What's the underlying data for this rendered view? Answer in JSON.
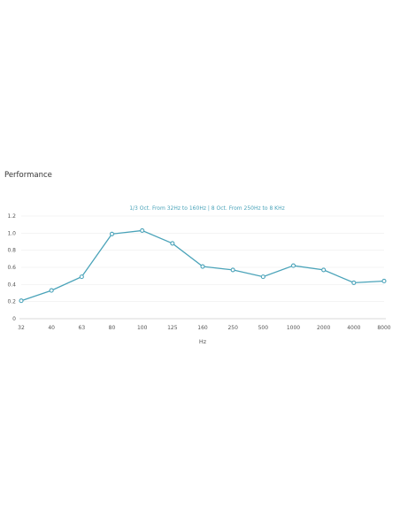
{
  "section": {
    "title": "Performance"
  },
  "colors": {
    "series": "#4aa3b9",
    "subtitle": "#4aa3b9",
    "grid": "#eeeeee",
    "axis": "#cccccc"
  },
  "chart_data": {
    "type": "line",
    "title": "",
    "subtitle": "1/3 Oct. From 32Hz to 160Hz | 8 Oct. From 250Hz to 8 KHz",
    "xlabel": "Hz",
    "ylabel": "",
    "categories": [
      "32",
      "40",
      "63",
      "80",
      "100",
      "125",
      "160",
      "250",
      "500",
      "1000",
      "2000",
      "4000",
      "8000"
    ],
    "series": [
      {
        "values": [
          0.21,
          0.33,
          0.49,
          0.99,
          1.03,
          0.88,
          0.61,
          0.57,
          0.49,
          0.62,
          0.57,
          0.42,
          0.44
        ]
      }
    ],
    "ylim": [
      0,
      1.2
    ],
    "yticks": [
      "0",
      "0.2",
      "0.4",
      "0.6",
      "0.8",
      "1.0",
      "1.2"
    ],
    "grid": true,
    "legend": "none"
  }
}
